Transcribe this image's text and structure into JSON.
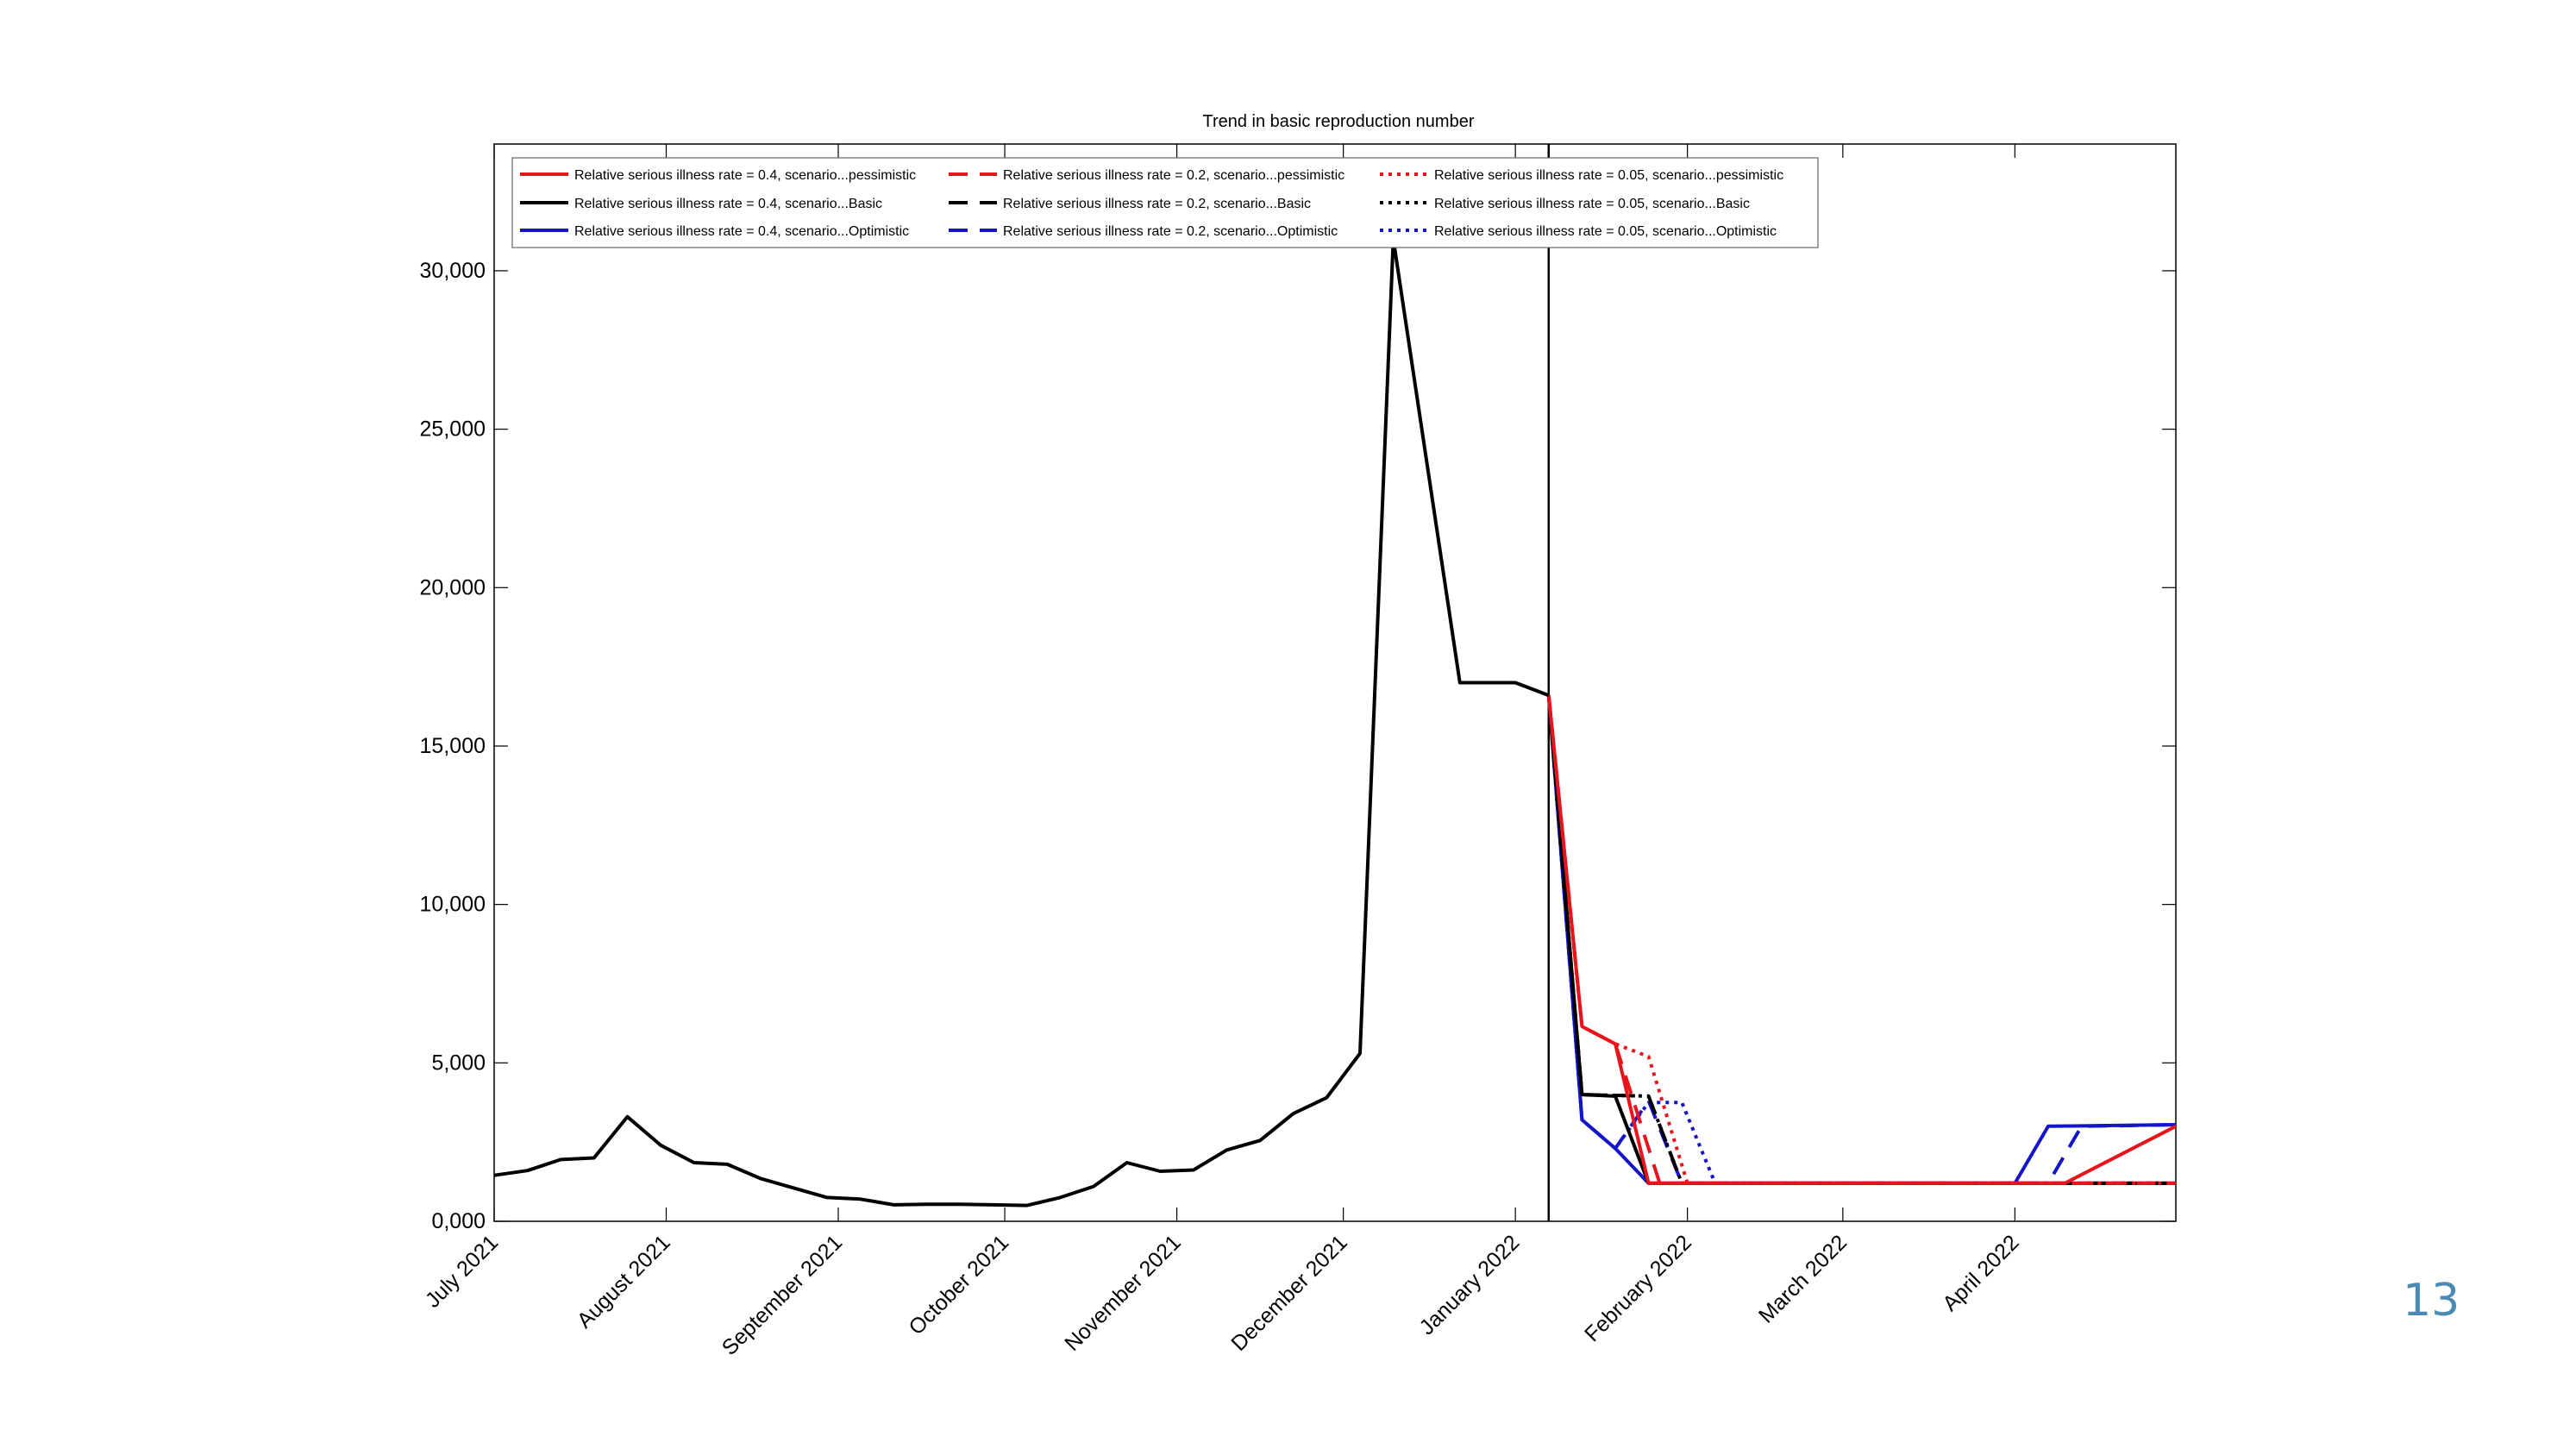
{
  "slide_number": "13",
  "chart_data": {
    "type": "line",
    "title": "Trend in basic reproduction number",
    "xlabel": "",
    "ylabel": "",
    "x_range": [
      "2021-07-01",
      "2022-04-30"
    ],
    "ylim": [
      0,
      34000
    ],
    "y_ticks": [
      0,
      5000,
      10000,
      15000,
      20000,
      25000,
      30000
    ],
    "y_tick_labels": [
      "0,000",
      "5,000",
      "10,000",
      "15,000",
      "20,000",
      "25,000",
      "30,000"
    ],
    "x_ticks": [
      "2021-07-01",
      "2021-08-01",
      "2021-09-01",
      "2021-10-01",
      "2021-11-01",
      "2021-12-01",
      "2022-01-01",
      "2022-02-01",
      "2022-03-01",
      "2022-04-01"
    ],
    "x_tick_labels": [
      "July 2021",
      "August 2021",
      "September 2021",
      "October 2021",
      "November 2021",
      "December 2021",
      "January 2022",
      "February 2022",
      "March 2022",
      "April 2022"
    ],
    "vertical_line_date": "2022-01-07",
    "grid": false,
    "legend_position": "top-left",
    "observed": {
      "dates": [
        "2021-07-01",
        "2021-07-07",
        "2021-07-13",
        "2021-07-19",
        "2021-07-25",
        "2021-07-31",
        "2021-08-06",
        "2021-08-12",
        "2021-08-18",
        "2021-08-24",
        "2021-08-30",
        "2021-09-05",
        "2021-09-11",
        "2021-09-17",
        "2021-09-23",
        "2021-09-29",
        "2021-10-05",
        "2021-10-11",
        "2021-10-17",
        "2021-10-23",
        "2021-10-29",
        "2021-11-04",
        "2021-11-10",
        "2021-11-16",
        "2021-11-22",
        "2021-11-28",
        "2021-12-04",
        "2021-12-10",
        "2021-12-16",
        "2021-12-22",
        "2021-12-28",
        "2022-01-01",
        "2022-01-07"
      ],
      "values": [
        1450,
        1600,
        1950,
        2000,
        3300,
        2400,
        1850,
        1800,
        1350,
        1050,
        750,
        700,
        520,
        540,
        540,
        520,
        500,
        750,
        1100,
        1850,
        1580,
        1620,
        2250,
        2550,
        3400,
        3900,
        5300,
        31000,
        24000,
        17000,
        17000,
        17000,
        16600
      ]
    },
    "series": [
      {
        "name": "Relative serious illness rate = 0.4, scenario...pessimistic",
        "color": "#e8141c",
        "dash": "solid",
        "dates": [
          "2022-01-07",
          "2022-01-13",
          "2022-01-19",
          "2022-01-25",
          "2022-04-10",
          "2022-04-30"
        ],
        "values": [
          16600,
          6150,
          5600,
          1200,
          1200,
          3000
        ]
      },
      {
        "name": "Relative serious illness rate = 0.2, scenario...pessimistic",
        "color": "#e8141c",
        "dash": "dashed",
        "dates": [
          "2022-01-07",
          "2022-01-13",
          "2022-01-19",
          "2022-01-27",
          "2022-04-30"
        ],
        "values": [
          16600,
          6150,
          5600,
          1200,
          1200
        ]
      },
      {
        "name": "Relative serious illness rate = 0.05, scenario...pessimistic",
        "color": "#e8141c",
        "dash": "dotted",
        "dates": [
          "2022-01-07",
          "2022-01-13",
          "2022-01-19",
          "2022-01-25",
          "2022-02-01",
          "2022-04-30"
        ],
        "values": [
          16600,
          6150,
          5600,
          5200,
          1200,
          1200
        ]
      },
      {
        "name": "Relative serious illness rate = 0.4, scenario...Basic",
        "color": "#000000",
        "dash": "solid",
        "dates": [
          "2022-01-07",
          "2022-01-13",
          "2022-01-19",
          "2022-01-25",
          "2022-04-30"
        ],
        "values": [
          16600,
          4000,
          3950,
          1200,
          1200
        ]
      },
      {
        "name": "Relative serious illness rate = 0.2, scenario...Basic",
        "color": "#000000",
        "dash": "dashed",
        "dates": [
          "2022-01-07",
          "2022-01-13",
          "2022-01-25",
          "2022-01-31",
          "2022-04-30"
        ],
        "values": [
          16600,
          4000,
          3950,
          1200,
          1200
        ]
      },
      {
        "name": "Relative serious illness rate = 0.05, scenario...Basic",
        "color": "#000000",
        "dash": "dotted",
        "dates": [
          "2022-01-07",
          "2022-01-13",
          "2022-01-25",
          "2022-01-31",
          "2022-04-30"
        ],
        "values": [
          16600,
          4000,
          3950,
          1200,
          1200
        ]
      },
      {
        "name": "Relative serious illness rate = 0.4, scenario...Optimistic",
        "color": "#1414c8",
        "dash": "solid",
        "dates": [
          "2022-01-07",
          "2022-01-13",
          "2022-01-19",
          "2022-01-25",
          "2022-04-01",
          "2022-04-07",
          "2022-04-30"
        ],
        "values": [
          16600,
          3200,
          2300,
          1200,
          1200,
          3000,
          3050
        ]
      },
      {
        "name": "Relative serious illness rate = 0.2, scenario...Optimistic",
        "color": "#1414c8",
        "dash": "dashed",
        "dates": [
          "2022-01-07",
          "2022-01-13",
          "2022-01-19",
          "2022-01-25",
          "2022-01-31",
          "2022-04-07",
          "2022-04-13",
          "2022-04-30"
        ],
        "values": [
          16600,
          3200,
          2300,
          3800,
          1200,
          1200,
          3000,
          3050
        ]
      },
      {
        "name": "Relative serious illness rate = 0.05, scenario...Optimistic",
        "color": "#1414c8",
        "dash": "dotted",
        "dates": [
          "2022-01-07",
          "2022-01-13",
          "2022-01-19",
          "2022-01-25",
          "2022-01-31",
          "2022-02-06",
          "2022-04-30"
        ],
        "values": [
          16600,
          3200,
          2300,
          3750,
          3750,
          1200,
          1200
        ]
      }
    ]
  }
}
